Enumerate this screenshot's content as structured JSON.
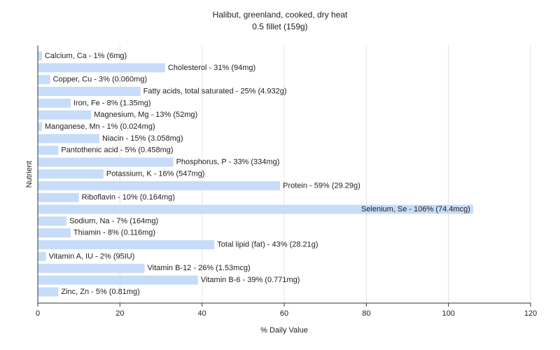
{
  "chart_data": {
    "type": "hbar",
    "title": "Halibut, greenland, cooked, dry heat",
    "subtitle": "0.5 fillet (159g)",
    "x_label": "% Daily Value",
    "y_label": "Nutrient",
    "values": [
      1,
      31,
      3,
      25,
      8,
      13,
      1,
      15,
      5,
      33,
      16,
      59,
      10,
      106,
      7,
      8,
      43,
      2,
      26,
      39,
      5
    ],
    "value_labels": [
      "Calcium, Ca - 1% (6mg)",
      "Cholesterol - 31% (94mg)",
      "Copper, Cu - 3% (0.060mg)",
      "Fatty acids, total saturated - 25% (4.932g)",
      "Iron, Fe - 8% (1.35mg)",
      "Magnesium, Mg - 13% (52mg)",
      "Manganese, Mn - 1% (0.024mg)",
      "Niacin - 15% (3.058mg)",
      "Pantothenic acid - 5% (0.458mg)",
      "Phosphorus, P - 33% (334mg)",
      "Potassium, K - 16% (547mg)",
      "Protein - 59% (29.29g)",
      "Riboflavin - 10% (0.164mg)",
      "Selenium, Se - 106% (74.4mcg)",
      "Sodium, Na - 7% (164mg)",
      "Thiamin - 8% (0.116mg)",
      "Total lipid (fat) - 43% (28.21g)",
      "Vitamin A, IU - 2% (95IU)",
      "Vitamin B-12 - 26% (1.53mcg)",
      "Vitamin B-6 - 39% (0.771mg)",
      "Zinc, Zn - 5% (0.81mg)"
    ],
    "color": "#c6dcf8",
    "xlim": [
      0,
      120
    ],
    "xticks": [
      0,
      20,
      40,
      60,
      80,
      100,
      120
    ],
    "grid": true
  }
}
